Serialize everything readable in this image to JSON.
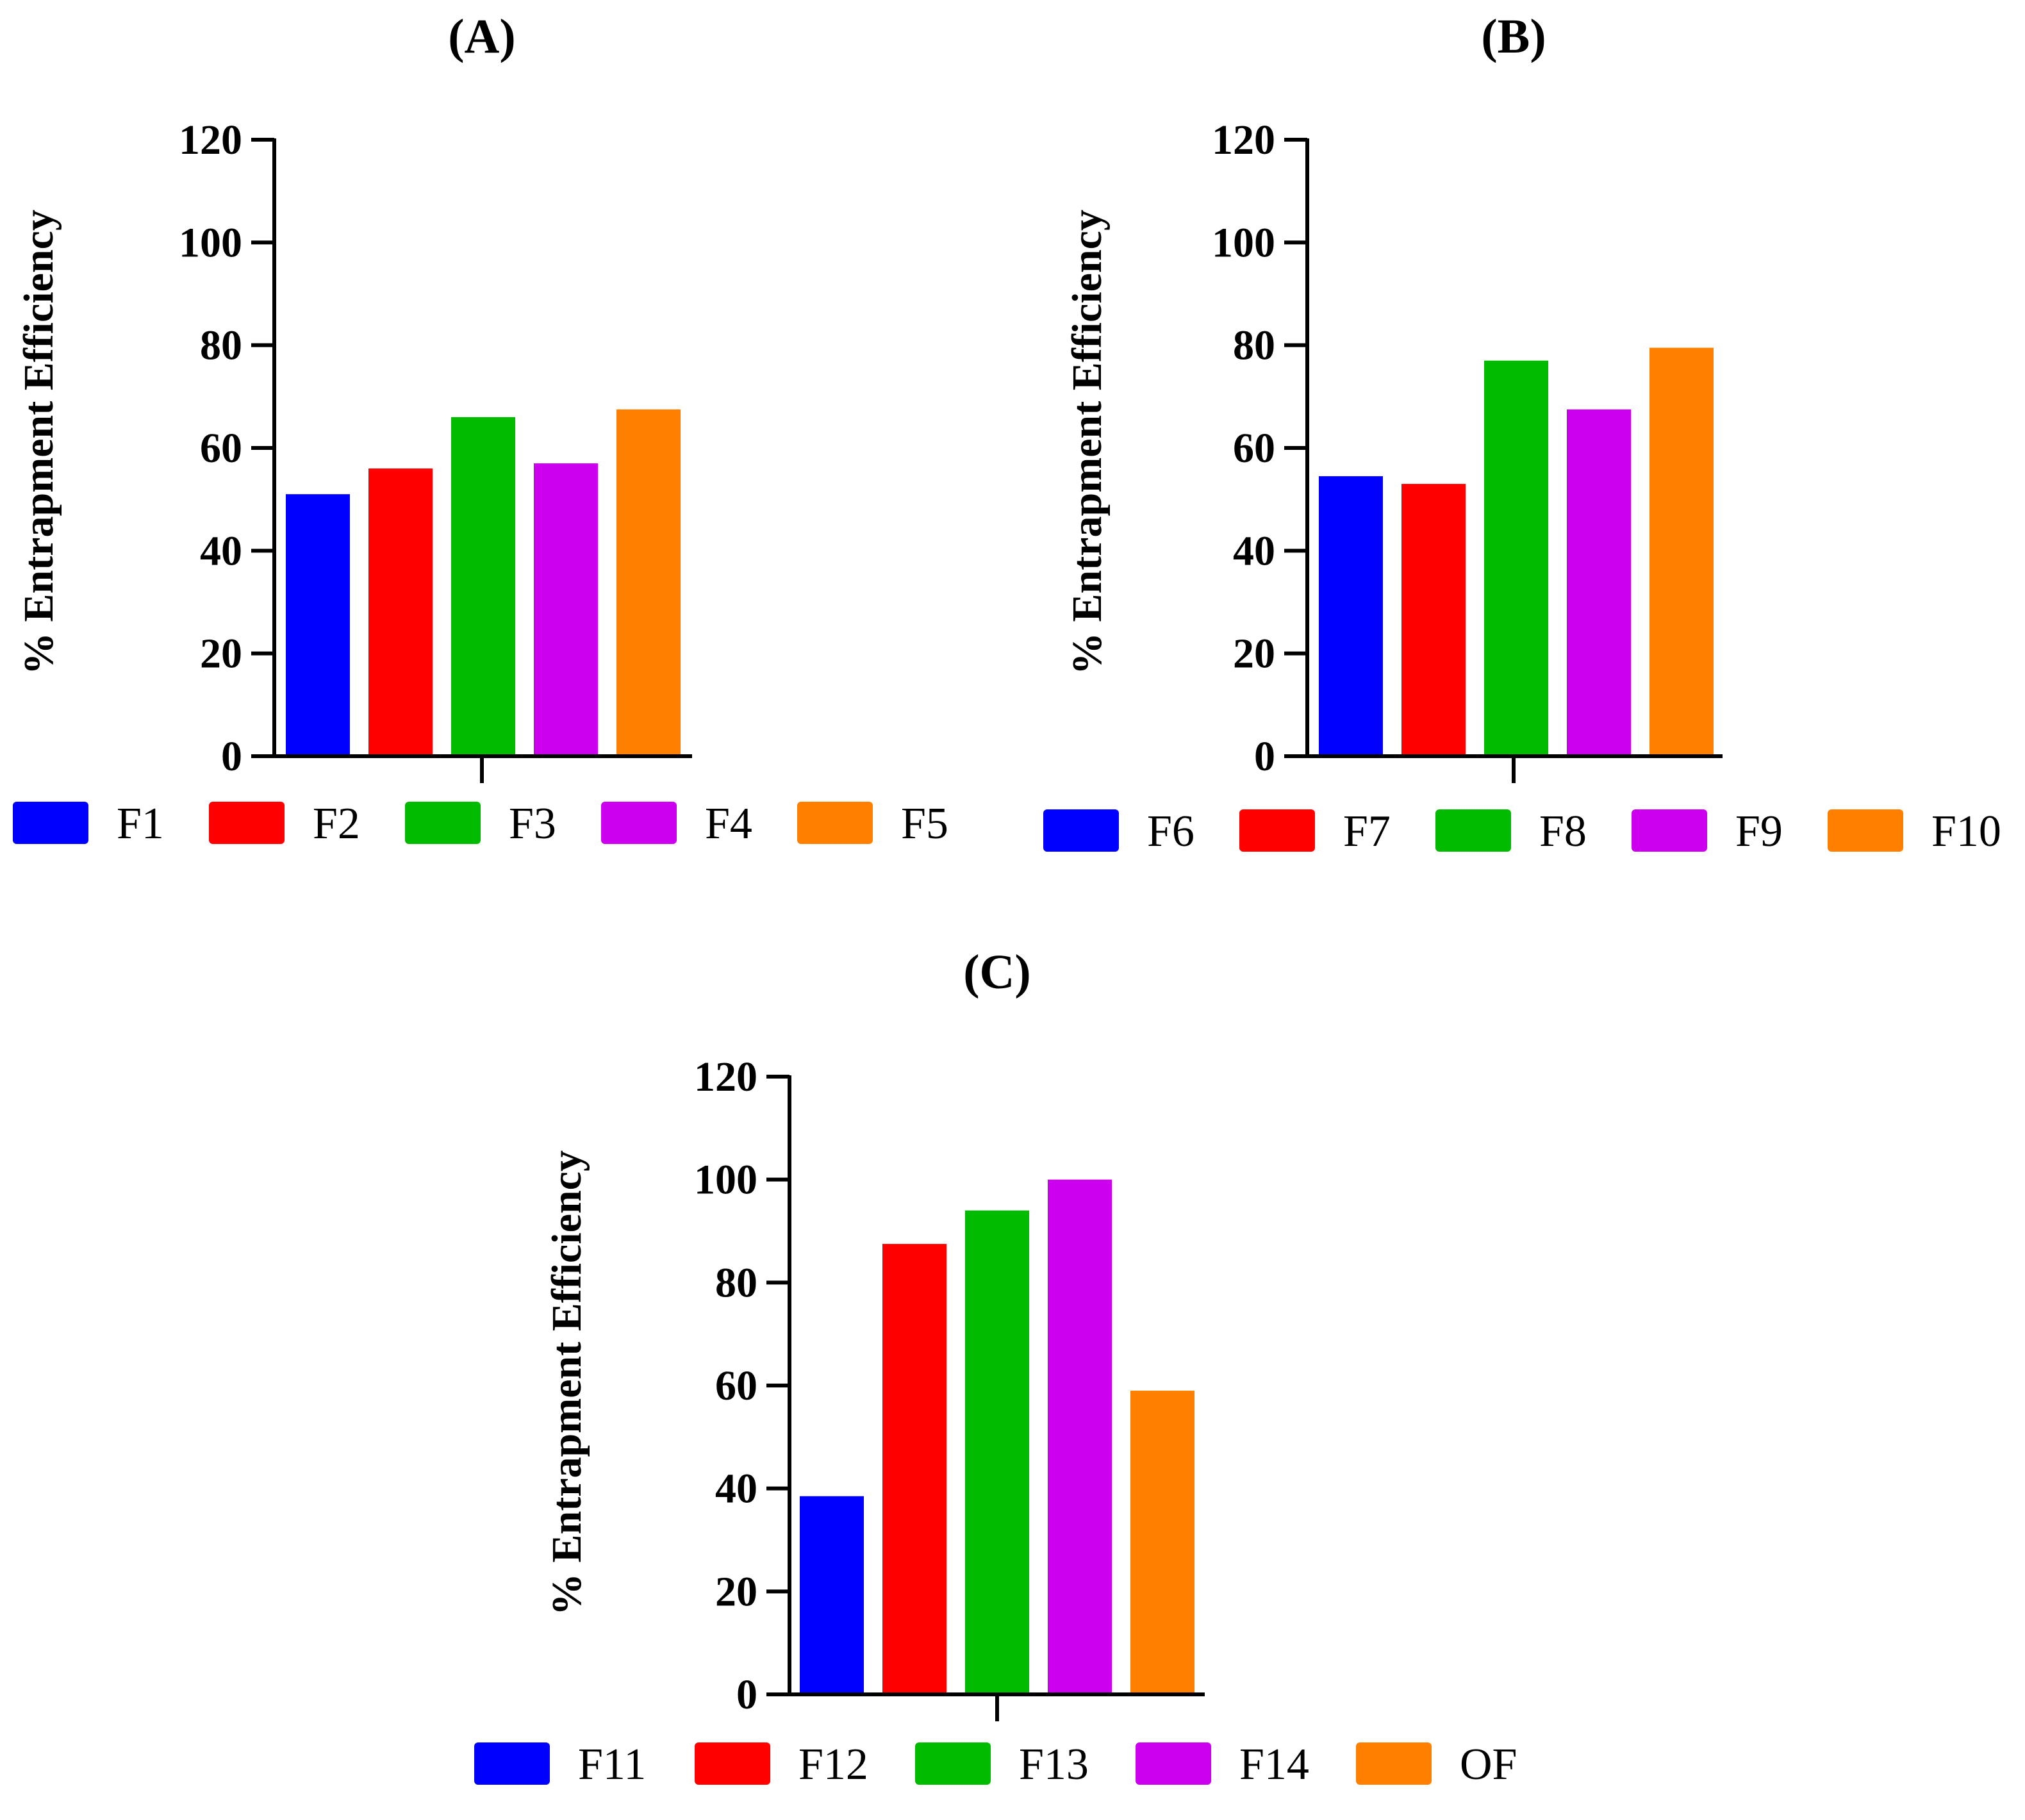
{
  "colors": {
    "blue": "#0000ff",
    "red": "#ff0000",
    "green": "#00bb00",
    "magenta": "#cc00ee",
    "orange": "#ff8000",
    "axis": "#000000"
  },
  "chart_data": [
    {
      "type": "bar",
      "title": "(A)",
      "ylabel": "% Entrapment Efficiency",
      "xlabel": "",
      "ylim": [
        0,
        120
      ],
      "yticks": [
        0,
        20,
        40,
        60,
        80,
        100,
        120
      ],
      "categories": [
        "F1",
        "F2",
        "F3",
        "F4",
        "F5"
      ],
      "values": [
        51,
        56,
        66,
        57,
        67.5
      ],
      "bar_colors": [
        "#0000ff",
        "#ff0000",
        "#00bb00",
        "#cc00ee",
        "#ff8000"
      ],
      "legend": [
        "F1",
        "F2",
        "F3",
        "F4",
        "F5"
      ],
      "legend_position": "bottom"
    },
    {
      "type": "bar",
      "title": "(B)",
      "ylabel": "% Entrapment Efficiency",
      "xlabel": "",
      "ylim": [
        0,
        120
      ],
      "yticks": [
        0,
        20,
        40,
        60,
        80,
        100,
        120
      ],
      "categories": [
        "F6",
        "F7",
        "F8",
        "F9",
        "F10"
      ],
      "values": [
        54.5,
        53,
        77,
        67.5,
        79.5
      ],
      "bar_colors": [
        "#0000ff",
        "#ff0000",
        "#00bb00",
        "#cc00ee",
        "#ff8000"
      ],
      "legend": [
        "F6",
        "F7",
        "F8",
        "F9",
        "F10"
      ],
      "legend_position": "bottom"
    },
    {
      "type": "bar",
      "title": "(C)",
      "ylabel": "% Entrapment Efficiency",
      "xlabel": "",
      "ylim": [
        0,
        120
      ],
      "yticks": [
        0,
        20,
        40,
        60,
        80,
        100,
        120
      ],
      "categories": [
        "F11",
        "F12",
        "F13",
        "F14",
        "OF"
      ],
      "values": [
        38.5,
        87.5,
        94,
        100,
        59
      ],
      "bar_colors": [
        "#0000ff",
        "#ff0000",
        "#00bb00",
        "#cc00ee",
        "#ff8000"
      ],
      "legend": [
        "F11",
        "F12",
        "F13",
        "F14",
        "OF"
      ],
      "legend_position": "bottom"
    }
  ]
}
